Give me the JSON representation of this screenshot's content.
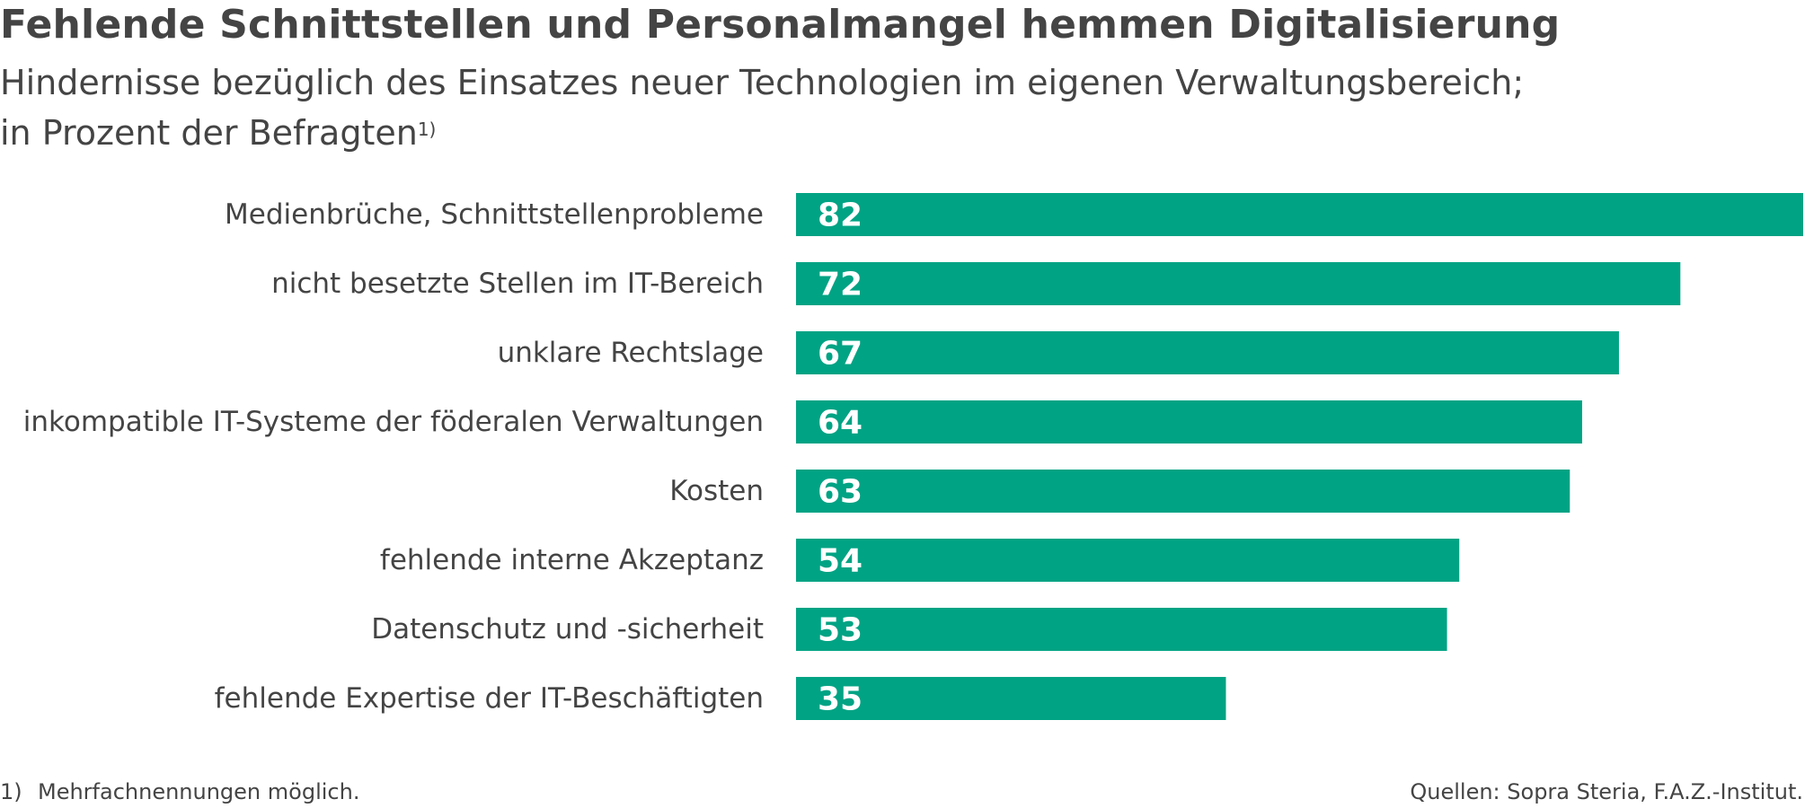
{
  "chart_data": {
    "type": "bar",
    "orientation": "horizontal",
    "title": "Fehlende Schnittstellen und Personalmangel hemmen Digitalisierung",
    "subtitle_line1": "Hindernisse bezüglich des Einsatzes neuer Technologien im eigenen Verwaltungsbereich;",
    "subtitle_line2": "in Prozent der Befragten",
    "subtitle_footnote_marker": "1)",
    "categories": [
      "Medienbrüche, Schnittstellenprobleme",
      "nicht besetzte Stellen im IT-Bereich",
      "unklare Rechtslage",
      "inkompatible IT-Systeme der föderalen Verwaltungen",
      "Kosten",
      "fehlende interne Akzeptanz",
      "Datenschutz und -sicherheit",
      "fehlende Expertise der IT-Beschäftigten"
    ],
    "values": [
      82,
      72,
      67,
      64,
      63,
      54,
      53,
      35
    ],
    "xlim": [
      0,
      82
    ],
    "bar_color": "#00A384",
    "value_label_color": "#ffffff",
    "grid": false,
    "legend": "none"
  },
  "footnote": {
    "marker": "1)",
    "text": "Mehrfachnennungen möglich."
  },
  "source": "Quellen: Sopra Steria, F.A.Z.-Institut."
}
